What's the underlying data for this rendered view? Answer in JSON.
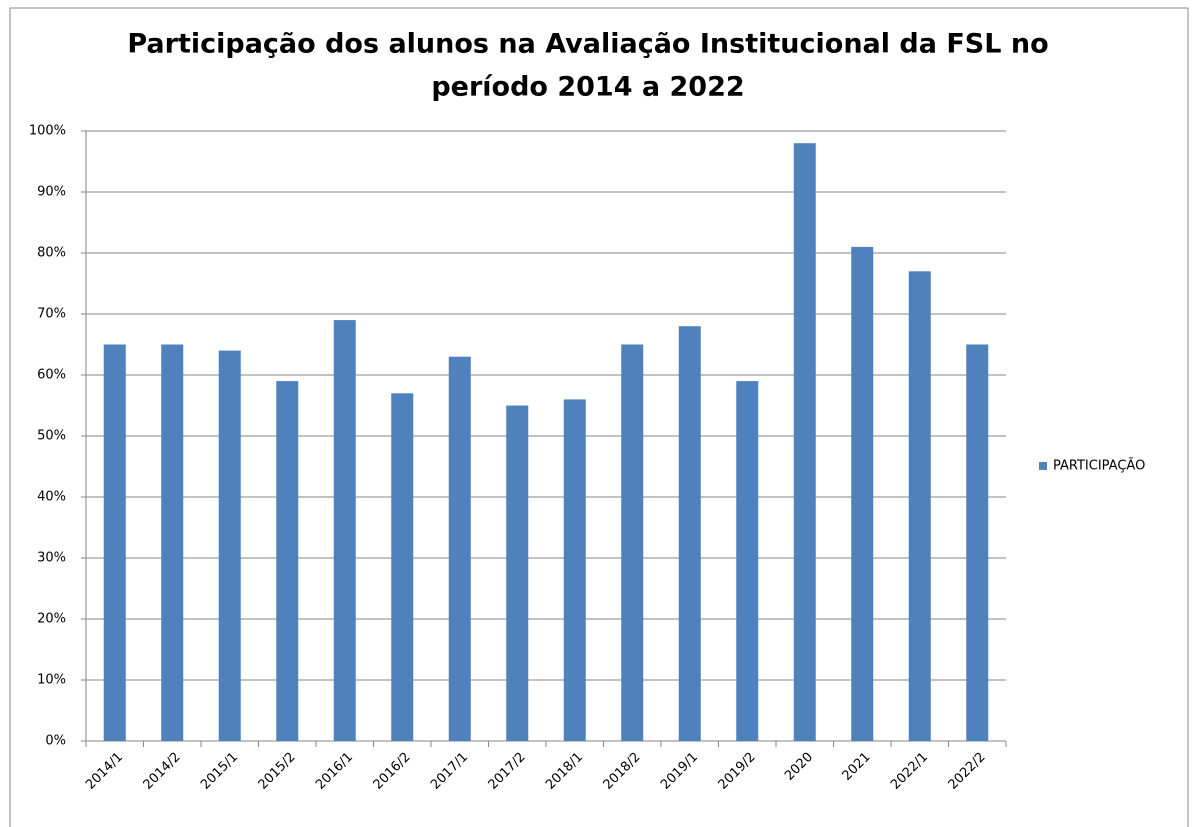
{
  "chart_data": {
    "type": "bar",
    "title": [
      "Participação dos alunos na Avaliação Institucional da FSL no",
      "período 2014  a 2022"
    ],
    "categories": [
      "2014/1",
      "2014/2",
      "2015/1",
      "2015/2",
      "2016/1",
      "2016/2",
      "2017/1",
      "2017/2",
      "2018/1",
      "2018/2",
      "2019/1",
      "2019/2",
      "2020",
      "2021",
      "2022/1",
      "2022/2"
    ],
    "series": [
      {
        "name": "PARTICIPAÇÃO",
        "color": "#4f81bd",
        "values": [
          65,
          65,
          64,
          59,
          69,
          57,
          63,
          55,
          56,
          65,
          68,
          59,
          98,
          81,
          77,
          65
        ]
      }
    ],
    "ylim": [
      0,
      100
    ],
    "yticks": [
      {
        "value": 0,
        "label": "0%"
      },
      {
        "value": 10,
        "label": "10%"
      },
      {
        "value": 20,
        "label": "20%"
      },
      {
        "value": 30,
        "label": "30%"
      },
      {
        "value": 40,
        "label": "40%"
      },
      {
        "value": 50,
        "label": "50%"
      },
      {
        "value": 60,
        "label": "60%"
      },
      {
        "value": 70,
        "label": "70%"
      },
      {
        "value": 80,
        "label": "80%"
      },
      {
        "value": 90,
        "label": "90%"
      },
      {
        "value": 100,
        "label": "100%"
      }
    ],
    "grid": true,
    "legend": "right"
  }
}
